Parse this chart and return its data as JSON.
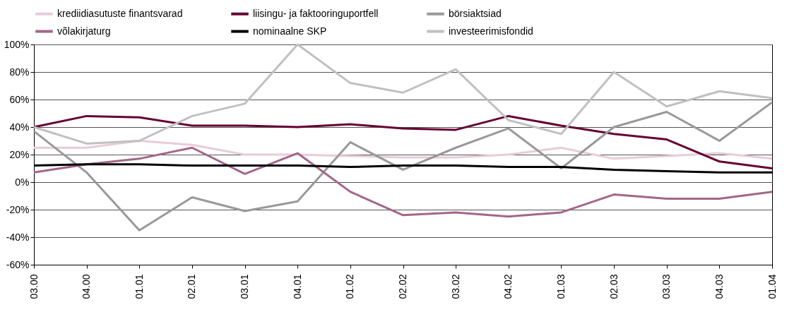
{
  "chart_data": {
    "type": "line",
    "categories": [
      "03.00",
      "04.00",
      "01.01",
      "02.01",
      "03.01",
      "04.01",
      "01.02",
      "02.02",
      "03.02",
      "04.02",
      "01.03",
      "02.03",
      "03.03",
      "04.03",
      "01.04"
    ],
    "series": [
      {
        "name": "krediidiasutuste finantsvarad",
        "color": "#e8ccd9",
        "values": [
          25,
          25,
          30,
          27,
          20,
          20,
          19,
          18,
          18,
          20,
          25,
          17,
          19,
          21,
          17
        ]
      },
      {
        "name": "liisingu- ja faktooringuportfell",
        "color": "#660033",
        "values": [
          40,
          48,
          47,
          41,
          41,
          40,
          42,
          39,
          38,
          48,
          41,
          35,
          31,
          15,
          10
        ]
      },
      {
        "name": "börsiaktsiad",
        "color": "#999999",
        "values": [
          37,
          7,
          -35,
          -11,
          -21,
          -14,
          29,
          9,
          25,
          39,
          10,
          40,
          51,
          30,
          58
        ]
      },
      {
        "name": "võlakirjaturg",
        "color": "#a3668a",
        "values": [
          7,
          13,
          17,
          25,
          6,
          21,
          -7,
          -24,
          -22,
          -25,
          -22,
          -9,
          -12,
          -12,
          -7
        ]
      },
      {
        "name": "nominaalne SKP",
        "color": "#000000",
        "values": [
          12,
          13,
          13,
          12,
          12,
          12,
          11,
          12,
          12,
          11,
          11,
          9,
          8,
          7,
          7
        ]
      },
      {
        "name": "investeerimisfondid",
        "color": "#c0c0c0",
        "values": [
          40,
          28,
          30,
          48,
          57,
          100,
          72,
          65,
          82,
          45,
          35,
          80,
          55,
          66,
          61
        ]
      }
    ],
    "ylim": [
      -60,
      100
    ],
    "yticks": [
      {
        "value": -60,
        "label": "-60%"
      },
      {
        "value": -40,
        "label": "-40%"
      },
      {
        "value": -20,
        "label": "-20%"
      },
      {
        "value": 0,
        "label": "0%"
      },
      {
        "value": 20,
        "label": "20%"
      },
      {
        "value": 40,
        "label": "40%"
      },
      {
        "value": 60,
        "label": "60%"
      },
      {
        "value": 80,
        "label": "80%"
      },
      {
        "value": 100,
        "label": "100%"
      }
    ],
    "grid": "y",
    "legend": "top",
    "marker": "none",
    "line_style": "solid"
  }
}
